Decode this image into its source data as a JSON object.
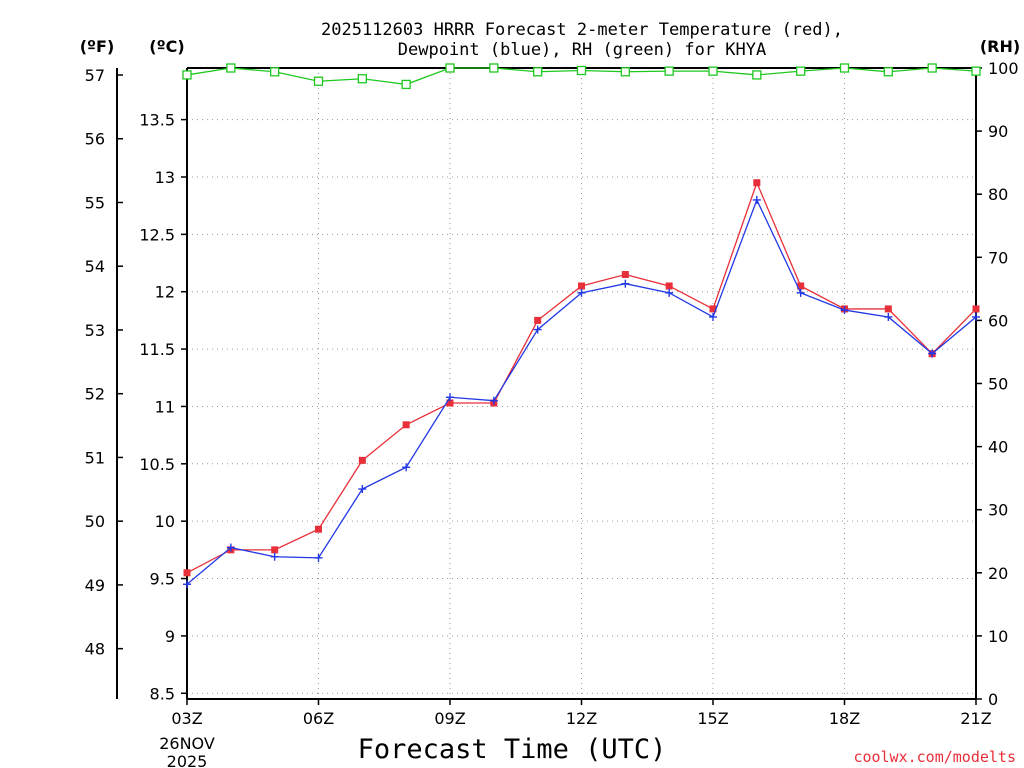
{
  "chart_data": {
    "type": "line",
    "title": [
      "2025112603 HRRR Forecast 2-meter Temperature (red),",
      "Dewpoint (blue), RH (green) for KHYA"
    ],
    "xlabel": "Forecast Time (UTC)",
    "x": [
      "03Z",
      "04Z",
      "05Z",
      "06Z",
      "07Z",
      "08Z",
      "09Z",
      "10Z",
      "11Z",
      "12Z",
      "13Z",
      "14Z",
      "15Z",
      "16Z",
      "17Z",
      "18Z",
      "19Z",
      "20Z",
      "21Z"
    ],
    "x_tick_labels": [
      "03Z",
      "06Z",
      "09Z",
      "12Z",
      "15Z",
      "18Z",
      "21Z"
    ],
    "x_date_label": [
      "26NOV",
      "2025"
    ],
    "series": [
      {
        "name": "Temperature",
        "color": "#e8303a",
        "marker": "filled-square",
        "axis": "celsius",
        "values": [
          9.55,
          9.75,
          9.75,
          9.93,
          10.53,
          10.84,
          11.03,
          11.03,
          11.75,
          12.05,
          12.15,
          12.05,
          11.85,
          12.95,
          12.05,
          11.85,
          11.85,
          11.46,
          11.85
        ]
      },
      {
        "name": "Dewpoint",
        "color": "#2238e6",
        "marker": "plus",
        "axis": "celsius",
        "values": [
          9.45,
          9.77,
          9.69,
          9.68,
          10.28,
          10.47,
          11.08,
          11.05,
          11.67,
          11.99,
          12.07,
          11.99,
          11.78,
          12.8,
          11.99,
          11.84,
          11.78,
          11.46,
          11.78
        ]
      },
      {
        "name": "RH",
        "color": "#1ec81e",
        "marker": "open-square",
        "axis": "rh",
        "values": [
          98.9,
          100,
          99.4,
          97.9,
          98.3,
          97.4,
          100,
          100,
          99.4,
          99.6,
          99.4,
          99.5,
          99.5,
          98.9,
          99.5,
          100,
          99.4,
          100,
          99.5
        ]
      }
    ],
    "axes": {
      "celsius": {
        "unit_label": "(ºC)",
        "ylim": [
          8.45,
          13.95
        ],
        "ticks": [
          "8.5",
          "9",
          "9.5",
          "10",
          "10.5",
          "11",
          "11.5",
          "12",
          "12.5",
          "13",
          "13.5"
        ]
      },
      "fahrenheit": {
        "unit_label": "(ºF)",
        "ticks": [
          "48",
          "49",
          "50",
          "51",
          "52",
          "53",
          "54",
          "55",
          "56",
          "57"
        ]
      },
      "rh": {
        "unit_label": "(RH)",
        "ylim": [
          0,
          100
        ],
        "ticks": [
          "0",
          "10",
          "20",
          "30",
          "40",
          "50",
          "60",
          "70",
          "80",
          "90",
          "100"
        ]
      }
    },
    "grid": true,
    "credit": "coolwx.com/modelts"
  }
}
